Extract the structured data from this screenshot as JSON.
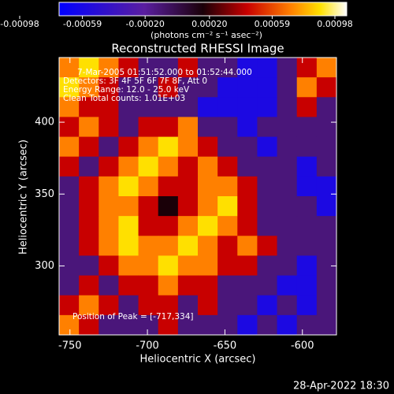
{
  "chart_data": {
    "type": "heatmap",
    "title": "Reconstructed RHESSI Image",
    "xlabel": "Heliocentric X (arcsec)",
    "ylabel": "Heliocentric Y (arcsec)",
    "xlim": [
      -757,
      -578
    ],
    "ylim": [
      252,
      445
    ],
    "xticks": [
      -750,
      -700,
      -650,
      -600
    ],
    "yticks": [
      300,
      350,
      400
    ],
    "clim": [
      -0.00098,
      0.00098
    ],
    "cticks": [
      {
        "value": -0.00098,
        "label": "-0.00098"
      },
      {
        "value": -0.00059,
        "label": "-0.00059"
      },
      {
        "value": -0.0002,
        "label": "-0.00020"
      },
      {
        "value": 0.0002,
        "label": "0.00020"
      },
      {
        "value": 0.00059,
        "label": "0.00059"
      },
      {
        "value": 0.00098,
        "label": "0.00098"
      }
    ],
    "clabel": "(photons cm⁻² s⁻¹ asec⁻²)",
    "colorscale": [
      [
        -0.00098,
        "#0000ff"
      ],
      [
        -0.0004,
        "#5a1ea0"
      ],
      [
        0,
        "#1a0008"
      ],
      [
        0.0003,
        "#c80000"
      ],
      [
        0.0006,
        "#ff8000"
      ],
      [
        0.0008,
        "#ffe000"
      ],
      [
        0.00098,
        "#ffffff"
      ]
    ],
    "annotations": [
      "7-Mar-2005 01:51:52.000 to 01:52:44.000",
      "Detectors: 3F 4F 5F 6F 7F 8F, Att 0",
      "Energy Range: 12.0 - 25.0 keV",
      "Clean     Total counts: 1.01E+03"
    ],
    "peak_label": "Position of Peak = [-717,334]",
    "timestamp": "28-Apr-2022 18:30",
    "z": [
      [
        0.0006,
        0.0008,
        0.0006,
        0.0003,
        -0.0003,
        -0.0003,
        0.0003,
        -0.0003,
        -0.0003,
        -0.0008,
        -0.0008,
        -0.0003,
        0.0003,
        0.0006
      ],
      [
        0.0008,
        0.0006,
        0.0003,
        -0.0003,
        -0.0003,
        0.0003,
        -0.0003,
        -0.0003,
        -0.0008,
        -0.0008,
        -0.0008,
        -0.0003,
        0.0006,
        0.0003
      ],
      [
        0.0006,
        0.0003,
        0.0003,
        -0.0003,
        -0.0003,
        -0.0003,
        -0.0003,
        -0.0008,
        -0.0008,
        -0.0008,
        -0.0008,
        -0.0003,
        0.0003,
        -0.0003
      ],
      [
        0.0003,
        0.0006,
        0.0003,
        -0.0003,
        0.0003,
        0.0003,
        0.0006,
        -0.0003,
        -0.0003,
        -0.0008,
        -0.0003,
        -0.0003,
        -0.0003,
        -0.0003
      ],
      [
        0.0006,
        0.0003,
        -0.0003,
        0.0003,
        0.0006,
        0.0008,
        0.0006,
        0.0003,
        -0.0003,
        -0.0003,
        -0.0008,
        -0.0003,
        -0.0003,
        -0.0003
      ],
      [
        0.0003,
        -0.0003,
        0.0003,
        0.0006,
        0.0008,
        0.0006,
        0.0003,
        0.0006,
        0.0003,
        -0.0003,
        -0.0003,
        -0.0003,
        -0.0008,
        -0.0003
      ],
      [
        -0.0003,
        0.0003,
        0.0006,
        0.0008,
        0.0006,
        0.0003,
        0.0003,
        0.0006,
        0.0006,
        0.0003,
        -0.0003,
        -0.0003,
        -0.0008,
        -0.0008
      ],
      [
        -0.0003,
        0.0003,
        0.0006,
        0.0006,
        0.0003,
        0,
        0.0003,
        0.0006,
        0.0008,
        0.0003,
        -0.0003,
        -0.0003,
        -0.0003,
        -0.0008
      ],
      [
        -0.0003,
        0.0003,
        0.0006,
        0.0008,
        0.0003,
        0.0003,
        0.0006,
        0.0008,
        0.0006,
        0.0003,
        -0.0003,
        -0.0003,
        -0.0003,
        -0.0003
      ],
      [
        -0.0003,
        0.0003,
        0.0006,
        0.0008,
        0.0006,
        0.0006,
        0.0008,
        0.0006,
        0.0003,
        0.0006,
        0.0003,
        -0.0003,
        -0.0003,
        -0.0003
      ],
      [
        -0.0003,
        -0.0003,
        0.0003,
        0.0006,
        0.0006,
        0.0008,
        0.0006,
        0.0006,
        0.0003,
        0.0003,
        -0.0003,
        -0.0003,
        -0.0008,
        -0.0003
      ],
      [
        -0.0003,
        0.0003,
        -0.0003,
        0.0003,
        0.0003,
        0.0006,
        0.0003,
        0.0003,
        -0.0003,
        -0.0003,
        -0.0003,
        -0.0008,
        -0.0008,
        -0.0003
      ],
      [
        0.0003,
        0.0006,
        0.0003,
        -0.0003,
        0.0003,
        0.0003,
        -0.0003,
        0.0003,
        -0.0003,
        -0.0003,
        -0.0008,
        -0.0003,
        -0.0008,
        -0.0003
      ],
      [
        0.0006,
        0.0003,
        -0.0003,
        -0.0003,
        -0.0003,
        0.0003,
        -0.0003,
        -0.0003,
        -0.0003,
        -0.0008,
        -0.0003,
        -0.0008,
        -0.0003,
        -0.0003
      ]
    ]
  }
}
